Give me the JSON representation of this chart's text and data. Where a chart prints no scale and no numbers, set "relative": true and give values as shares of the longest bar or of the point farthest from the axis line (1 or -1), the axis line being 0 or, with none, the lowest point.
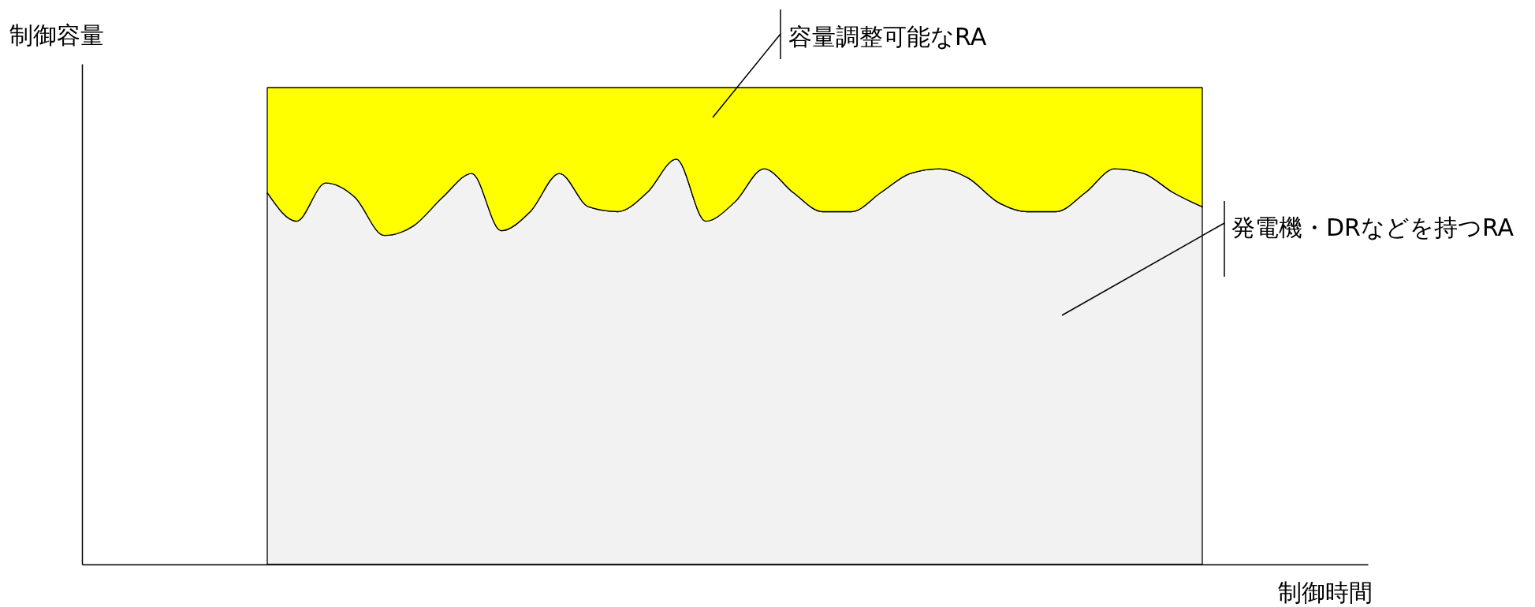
{
  "chart_data": {
    "type": "area",
    "xlabel": "制御時間",
    "annotations": [
      "制御容量"
    ],
    "relative": true,
    "stacked": true,
    "grid": false,
    "legend": "top right",
    "categories": [
      null,
      null,
      null,
      null,
      null,
      null,
      null,
      null,
      null,
      null,
      null,
      null,
      null,
      null,
      null,
      null,
      null,
      null,
      null,
      null,
      null,
      null,
      null,
      null,
      null,
      null,
      null,
      null,
      null,
      null,
      null,
      null,
      null
    ],
    "series": [
      {
        "name": "発電機・DRなどを持つRA",
        "color": "#f2f2f2",
        "values": [
          0.78,
          0.72,
          0.8,
          0.77,
          0.69,
          0.71,
          0.77,
          0.82,
          0.7,
          0.74,
          0.82,
          0.75,
          0.74,
          0.78,
          0.85,
          0.72,
          0.76,
          0.83,
          0.78,
          0.74,
          0.74,
          0.78,
          0.82,
          0.83,
          0.81,
          0.76,
          0.74,
          0.74,
          0.78,
          0.83,
          0.82,
          0.78,
          0.75
        ]
      },
      {
        "name": "容量調整可能なRA",
        "color": "#ffff00",
        "values": [
          0.22,
          0.28,
          0.2,
          0.23,
          0.31,
          0.29,
          0.23,
          0.18,
          0.3,
          0.26,
          0.18,
          0.25,
          0.26,
          0.22,
          0.15,
          0.28,
          0.24,
          0.17,
          0.22,
          0.26,
          0.26,
          0.22,
          0.18,
          0.17,
          0.19,
          0.24,
          0.26,
          0.26,
          0.22,
          0.17,
          0.18,
          0.22,
          0.25
        ]
      }
    ]
  }
}
